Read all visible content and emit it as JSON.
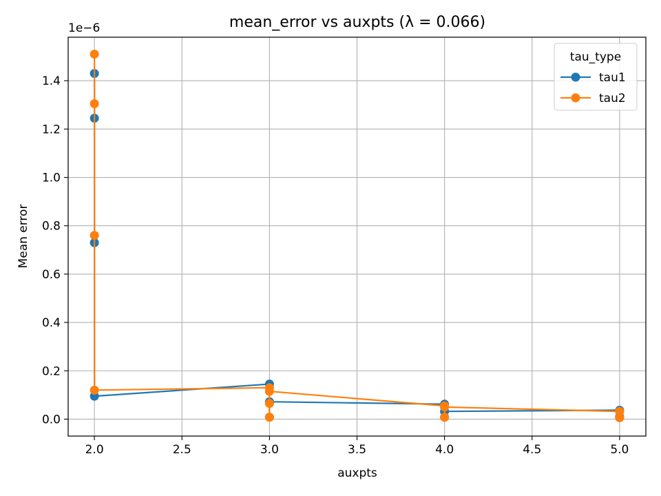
{
  "chart_data": {
    "type": "line",
    "title": "mean_error vs auxpts (λ = 0.066)",
    "xlabel": "auxpts",
    "ylabel": "Mean error",
    "y_offset_label": "1e−6",
    "y_scale": 1e-06,
    "xlim": [
      1.85,
      5.15
    ],
    "ylim": [
      -7e-08,
      1.58e-06
    ],
    "x_ticks": [
      2.0,
      2.5,
      3.0,
      3.5,
      4.0,
      4.5,
      5.0
    ],
    "x_tick_labels": [
      "2.0",
      "2.5",
      "3.0",
      "3.5",
      "4.0",
      "4.5",
      "5.0"
    ],
    "y_ticks": [
      0.0,
      2e-07,
      4e-07,
      6e-07,
      8e-07,
      1e-06,
      1.2e-06,
      1.4e-06
    ],
    "y_tick_labels": [
      "0.0",
      "0.2",
      "0.4",
      "0.6",
      "0.8",
      "1.0",
      "1.2",
      "1.4"
    ],
    "grid": true,
    "legend": {
      "title": "tau_type",
      "position": "top-right"
    },
    "series": [
      {
        "name": "tau1",
        "color": "#1f77b4",
        "x": [
          2,
          2,
          2,
          2,
          3,
          3,
          3,
          3,
          4,
          4,
          4,
          5,
          5,
          5
        ],
        "y": [
          1.43e-06,
          1.245e-06,
          7.3e-07,
          9.5e-08,
          1.45e-07,
          6.8e-08,
          8e-09,
          7.2e-08,
          6.2e-08,
          8e-09,
          3.2e-08,
          3.7e-08,
          8e-09,
          1e-08
        ]
      },
      {
        "name": "tau2",
        "color": "#ff7f0e",
        "x": [
          2,
          2,
          2,
          2,
          3,
          3,
          3,
          3,
          4,
          4,
          4,
          5,
          5,
          5
        ],
        "y": [
          1.51e-06,
          1.305e-06,
          7.6e-07,
          1.2e-07,
          1.3e-07,
          6.5e-08,
          8e-09,
          1.15e-07,
          5.5e-08,
          8e-09,
          5e-08,
          3.2e-08,
          6e-09,
          3.2e-08
        ]
      }
    ]
  }
}
